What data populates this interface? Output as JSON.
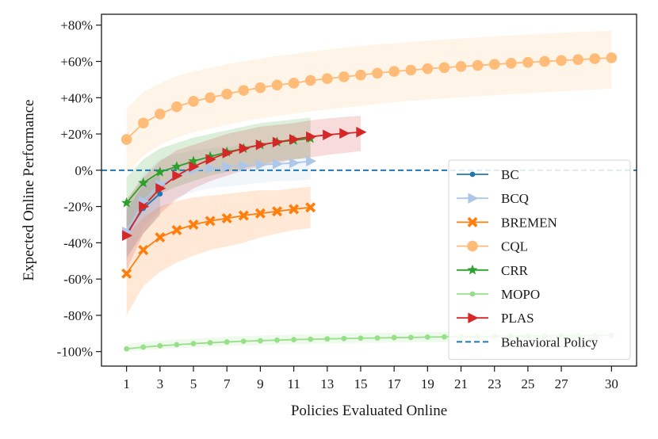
{
  "chart_data": {
    "type": "line",
    "title": "",
    "xlabel": "Policies Evaluated Online",
    "ylabel": "Expected Online Performance",
    "xlim": [
      -0.5,
      31.5
    ],
    "ylim": [
      -108,
      86
    ],
    "xticks": [
      1,
      3,
      5,
      7,
      9,
      11,
      13,
      15,
      17,
      19,
      21,
      23,
      25,
      27,
      30
    ],
    "xtick_labels": [
      "1",
      "3",
      "5",
      "7",
      "9",
      "11",
      "13",
      "15",
      "17",
      "19",
      "21",
      "23",
      "25",
      "27",
      "30"
    ],
    "yticks": [
      -100,
      -80,
      -60,
      -40,
      -20,
      0,
      20,
      40,
      60,
      80
    ],
    "ytick_labels": [
      "-100%",
      "-80%",
      "-60%",
      "-40%",
      "-20%",
      "0%",
      "+20%",
      "+40%",
      "+60%",
      "+80%"
    ],
    "grid": false,
    "legend_position": "lower-right",
    "reference_line": {
      "name": "Behavioral Policy",
      "y": 0,
      "color": "#1f77b4",
      "style": "dashed"
    },
    "series": [
      {
        "name": "BC",
        "color": "#1f77b4",
        "marker": "circle-small",
        "x": [
          1,
          2,
          3
        ],
        "y": [
          -35,
          -21,
          -13
        ],
        "band_lo": [
          -48,
          -35,
          -25
        ],
        "band_hi": [
          -22,
          -8,
          -2
        ]
      },
      {
        "name": "BCQ",
        "color": "#aec7e8",
        "marker": "triangle-right",
        "x": [
          1,
          2,
          3,
          4,
          5,
          6,
          7,
          8,
          9,
          10,
          11,
          12
        ],
        "y": [
          -34,
          -17,
          -8,
          -3,
          0,
          1,
          2,
          2.5,
          3,
          3.5,
          4,
          5
        ],
        "band_lo": [
          -50,
          -32,
          -22,
          -15,
          -12,
          -10,
          -9,
          -8,
          -7,
          -6,
          -6,
          -5
        ],
        "band_hi": [
          -18,
          -2,
          6,
          9,
          11,
          12,
          13,
          14,
          14,
          15,
          15,
          16
        ]
      },
      {
        "name": "BREMEN",
        "color": "#ff7f0e",
        "marker": "x",
        "x": [
          1,
          2,
          3,
          4,
          5,
          6,
          7,
          8,
          9,
          10,
          11,
          12
        ],
        "y": [
          -57,
          -44,
          -37,
          -33,
          -30,
          -28,
          -26.5,
          -25,
          -23.8,
          -22.7,
          -21.5,
          -20.5
        ],
        "band_lo": [
          -80,
          -64,
          -56,
          -51,
          -47,
          -44,
          -42,
          -40,
          -37,
          -35,
          -33,
          -32
        ],
        "band_hi": [
          -36,
          -26,
          -20,
          -17,
          -15,
          -14,
          -13,
          -12,
          -11,
          -11,
          -10,
          -9
        ]
      },
      {
        "name": "CQL",
        "color": "#ffbb78",
        "marker": "circle",
        "x": [
          1,
          2,
          3,
          4,
          5,
          6,
          7,
          8,
          9,
          10,
          11,
          12,
          13,
          14,
          15,
          16,
          17,
          18,
          19,
          20,
          21,
          22,
          23,
          24,
          25,
          26,
          27,
          28,
          29,
          30
        ],
        "y": [
          17,
          26,
          31,
          35,
          38,
          40,
          42,
          44,
          45.5,
          47,
          48,
          49.5,
          50.5,
          51.5,
          52.5,
          53.5,
          54.5,
          55.2,
          56,
          56.6,
          57.2,
          57.8,
          58.4,
          59,
          59.5,
          60,
          60.5,
          61,
          61.5,
          62
        ],
        "band_lo": [
          -2,
          8,
          14,
          18,
          21,
          23,
          25,
          27,
          28.5,
          30,
          31,
          32.5,
          33.5,
          34.5,
          35.5,
          36.5,
          37.5,
          38.2,
          39,
          39.6,
          40.2,
          40.8,
          41.4,
          42,
          42.5,
          43,
          43.5,
          44,
          44.5,
          45
        ],
        "band_hi": [
          34,
          43,
          48,
          52,
          54.5,
          56.5,
          58.5,
          60,
          61.5,
          63,
          64,
          65.5,
          66.5,
          67.5,
          68.5,
          69.5,
          70,
          70.8,
          71.5,
          72,
          72.6,
          73.2,
          73.8,
          74.3,
          74.8,
          75.3,
          75.8,
          76.2,
          76.6,
          77
        ]
      },
      {
        "name": "CRR",
        "color": "#2ca02c",
        "marker": "star",
        "x": [
          1,
          2,
          3,
          4,
          5,
          6,
          7,
          8,
          9,
          10,
          11,
          12
        ],
        "y": [
          -18,
          -7,
          -1,
          2,
          5,
          7.5,
          10,
          12,
          14,
          15.5,
          16.5,
          17.5
        ],
        "band_lo": [
          -32,
          -20,
          -13,
          -9,
          -6,
          -3,
          -1,
          1,
          3,
          5,
          6,
          7
        ],
        "band_hi": [
          -4,
          6,
          12,
          15,
          18,
          20,
          22,
          24,
          26,
          27,
          28,
          29
        ]
      },
      {
        "name": "MOPO",
        "color": "#98df8a",
        "marker": "circle-small",
        "x": [
          1,
          2,
          3,
          4,
          5,
          6,
          7,
          8,
          9,
          10,
          11,
          12,
          13,
          14,
          15,
          16,
          17,
          18,
          19,
          20,
          21,
          22,
          23,
          24,
          25,
          26,
          27,
          28,
          29,
          30
        ],
        "y": [
          -98.5,
          -97.5,
          -96.8,
          -96.2,
          -95.6,
          -95.1,
          -94.7,
          -94.3,
          -94,
          -93.7,
          -93.4,
          -93.2,
          -93,
          -92.8,
          -92.6,
          -92.5,
          -92.3,
          -92.2,
          -92,
          -91.9,
          -91.8,
          -91.7,
          -91.6,
          -91.5,
          -91.4,
          -91.3,
          -91.2,
          -91.1,
          -91,
          -91
        ],
        "band_lo": [
          -100,
          -99.3,
          -98.7,
          -98.2,
          -97.7,
          -97.3,
          -96.9,
          -96.6,
          -96.3,
          -96.1,
          -95.9,
          -95.7,
          -95.5,
          -95.3,
          -95.2,
          -95.1,
          -95,
          -94.9,
          -94.8,
          -94.7,
          -94.6,
          -94.5,
          -94.4,
          -94.3,
          -94.2,
          -94.1,
          -94,
          -93.9,
          -93.8,
          -93.7
        ],
        "band_hi": [
          -96,
          -94.8,
          -94,
          -93.4,
          -92.8,
          -92.3,
          -91.9,
          -91.5,
          -91.2,
          -90.9,
          -90.6,
          -90.4,
          -90.2,
          -90,
          -89.8,
          -89.7,
          -89.5,
          -89.4,
          -89.2,
          -89.1,
          -89,
          -88.9,
          -88.8,
          -88.7,
          -88.6,
          -88.5,
          -88.4,
          -88.3,
          -88.2,
          -88.1
        ]
      },
      {
        "name": "PLAS",
        "color": "#d62728",
        "marker": "triangle-right",
        "x": [
          1,
          2,
          3,
          4,
          5,
          6,
          7,
          8,
          9,
          10,
          11,
          12,
          13,
          14,
          15
        ],
        "y": [
          -36,
          -20,
          -10,
          -3,
          2,
          6,
          9.5,
          12,
          14,
          15.5,
          17,
          18.5,
          19.5,
          20.3,
          21
        ],
        "band_lo": [
          -55,
          -35,
          -24,
          -16,
          -10,
          -6,
          -3,
          0,
          2,
          4,
          6,
          7,
          8.5,
          9.5,
          10.5
        ],
        "band_hi": [
          -16,
          -4,
          5,
          11,
          14,
          17,
          20,
          22,
          24,
          25,
          26,
          27.5,
          28.5,
          29.3,
          30
        ]
      }
    ]
  }
}
